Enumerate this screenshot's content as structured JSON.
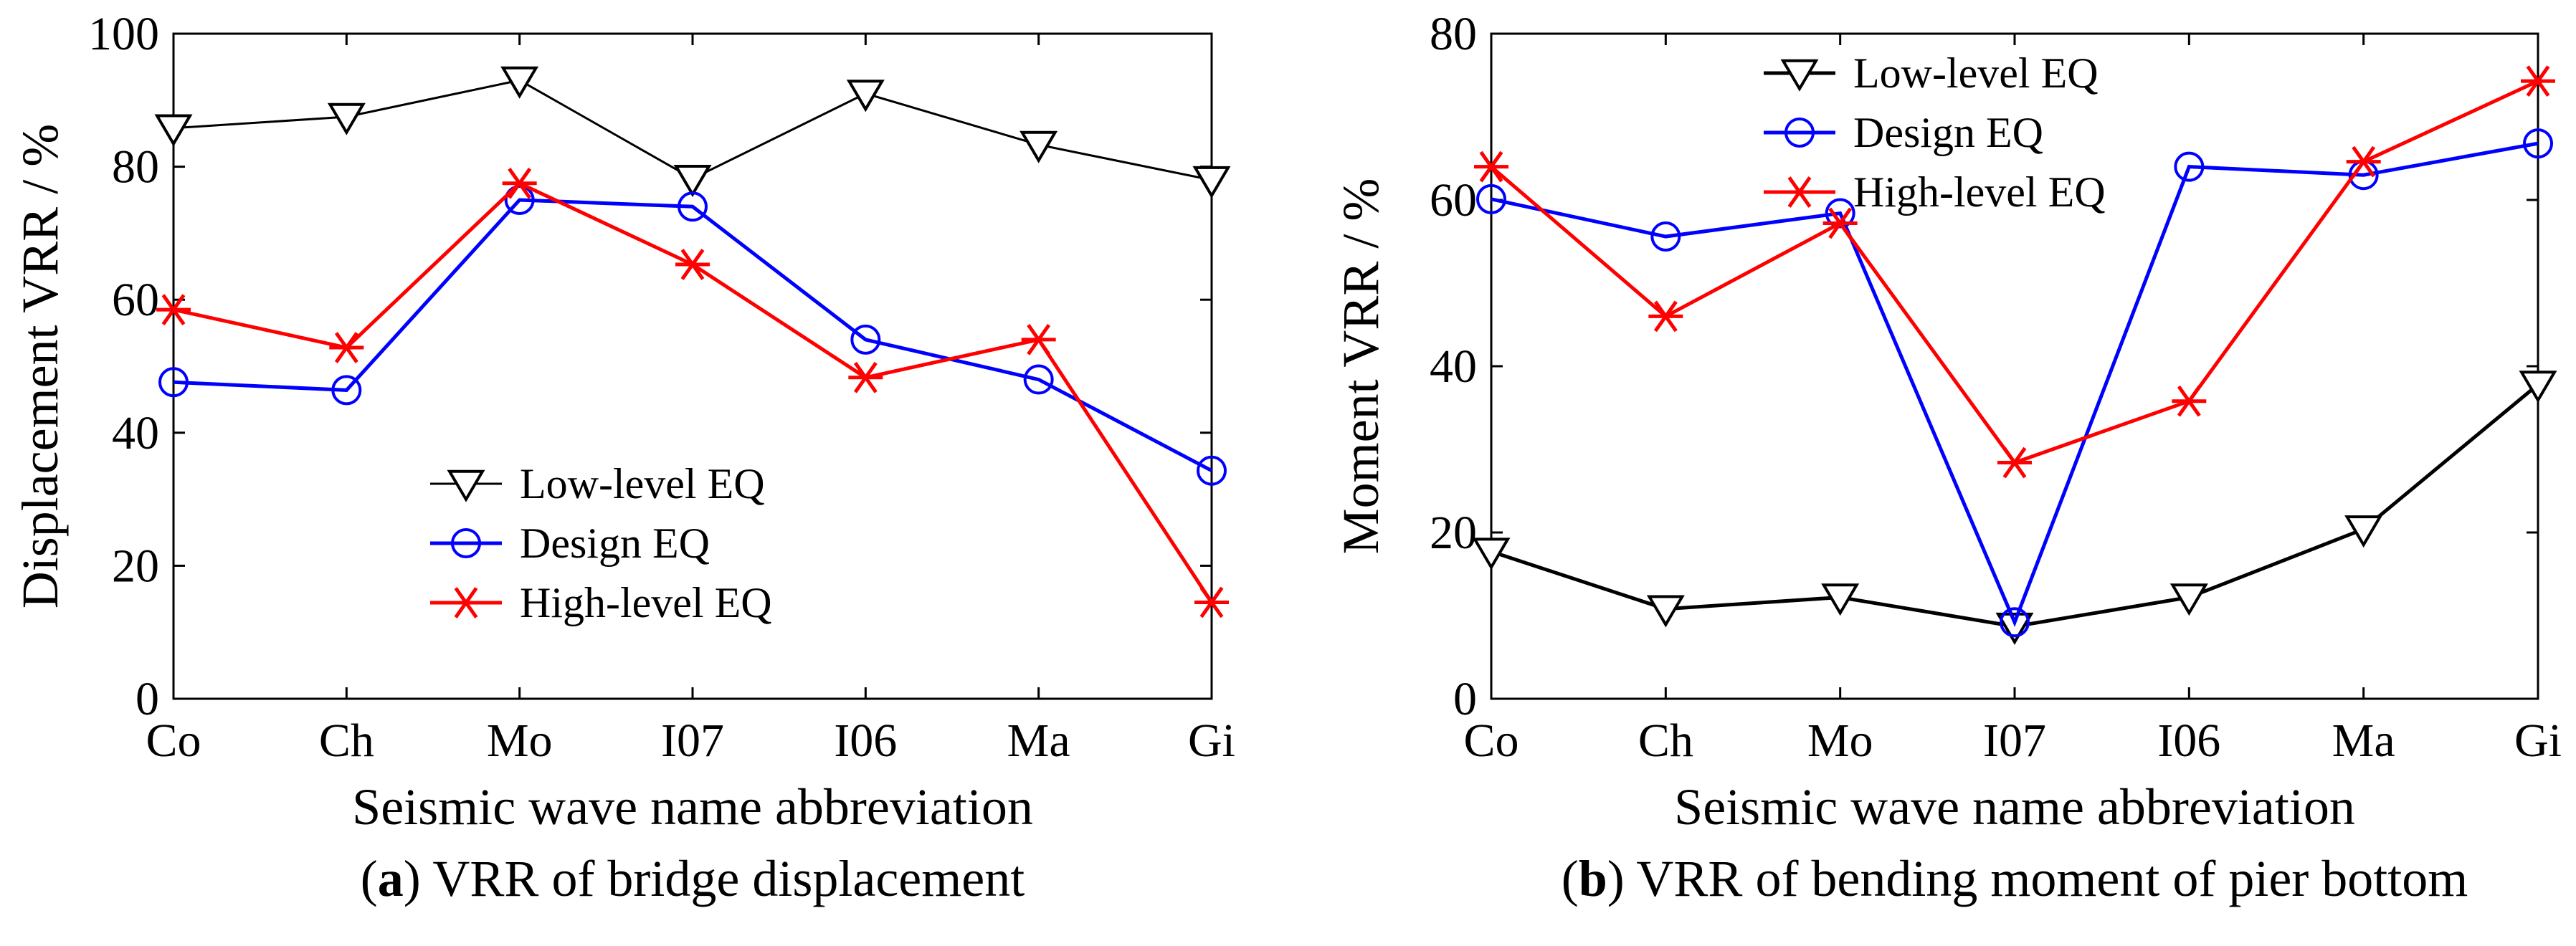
{
  "chart_data": [
    {
      "type": "line",
      "panel_label": "a",
      "caption": "VRR of bridge displacement",
      "xlabel": "Seismic wave name abbreviation",
      "ylabel": "Displacement VRR / %",
      "categories": [
        "Co",
        "Ch",
        "Mo",
        "I07",
        "I06",
        "Ma",
        "Gi"
      ],
      "ylim": [
        0,
        100
      ],
      "yticks": [
        0,
        20,
        40,
        60,
        80,
        100
      ],
      "legend_position": "center",
      "series": [
        {
          "name": "Low-level EQ",
          "color": "#000000",
          "marker": "triangle-down",
          "values": [
            85.8,
            87.5,
            93.0,
            78.2,
            91.0,
            83.3,
            78.0
          ]
        },
        {
          "name": "Design EQ",
          "color": "#0000ff",
          "marker": "circle",
          "values": [
            47.6,
            46.4,
            75.0,
            74.0,
            54.0,
            48.0,
            34.3
          ]
        },
        {
          "name": "High-level EQ",
          "color": "#ff0000",
          "marker": "asterisk",
          "values": [
            58.5,
            52.8,
            77.5,
            65.3,
            48.3,
            54.0,
            14.5
          ]
        }
      ]
    },
    {
      "type": "line",
      "panel_label": "b",
      "caption": "VRR of bending moment of pier bottom",
      "xlabel": "Seismic wave name abbreviation",
      "ylabel": "Moment VRR / %",
      "categories": [
        "Co",
        "Ch",
        "Mo",
        "I07",
        "I06",
        "Ma",
        "Gi"
      ],
      "ylim": [
        0,
        80
      ],
      "yticks": [
        0,
        20,
        40,
        60,
        80
      ],
      "legend_position": "top-left",
      "series": [
        {
          "name": "Low-level EQ",
          "color": "#000000",
          "marker": "triangle-down",
          "values": [
            17.7,
            10.8,
            12.2,
            8.7,
            12.2,
            20.4,
            37.8
          ]
        },
        {
          "name": "Design EQ",
          "color": "#0000ff",
          "marker": "circle",
          "values": [
            60.1,
            55.6,
            58.4,
            9.2,
            64.0,
            63.0,
            66.8
          ]
        },
        {
          "name": "High-level EQ",
          "color": "#ff0000",
          "marker": "asterisk",
          "values": [
            64.0,
            46.0,
            57.2,
            28.4,
            35.8,
            64.6,
            74.3
          ]
        }
      ]
    }
  ]
}
